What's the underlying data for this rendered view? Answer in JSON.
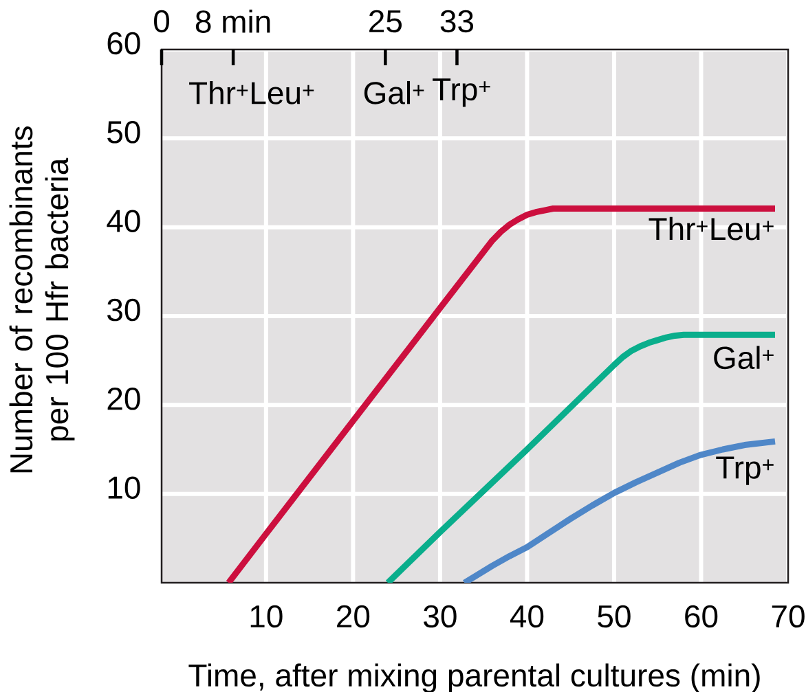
{
  "chart_data": {
    "type": "line",
    "xlabel": "Time, after mixing parental cultures (min)",
    "ylabel": "Number of recombinants per 100 Hfr bacteria",
    "xlim": [
      -2,
      70
    ],
    "xticks": [
      10,
      20,
      30,
      40,
      50,
      60,
      70
    ],
    "ylim": [
      0,
      60
    ],
    "yticks": [
      10,
      20,
      30,
      40,
      50,
      60
    ],
    "x2lim": [
      0,
      70
    ],
    "x2ticks": [
      0,
      {
        "value": 8,
        "label": "8 min"
      },
      25,
      33
    ],
    "grid": true,
    "series": [
      {
        "name": "Thr$^{+}$Leu$^{+}$",
        "color": "#cc0f3e",
        "x": [
          5.7,
          10,
          20,
          30,
          36,
          37,
          38,
          39,
          40,
          41,
          42,
          43,
          68.5
        ],
        "values": [
          0,
          5.5,
          18.2,
          30.9,
          38.5,
          39.5,
          40.3,
          40.9,
          41.4,
          41.7,
          41.9,
          42.1,
          42.1
        ]
      },
      {
        "name": "Gal$^{+}$",
        "color": "#0aae8c",
        "x": [
          24,
          30,
          40,
          50,
          51,
          52,
          53,
          54,
          55,
          56,
          57,
          58,
          68.5
        ],
        "values": [
          0,
          5.7,
          15.0,
          24.5,
          25.4,
          26.1,
          26.6,
          27.0,
          27.3,
          27.6,
          27.8,
          27.9,
          27.9
        ]
      },
      {
        "name": "Trp$^{+}$",
        "color": "#4f87c8",
        "x": [
          32.8,
          34,
          36,
          38,
          40,
          42.5,
          45,
          47.5,
          50,
          52.5,
          55,
          57.5,
          60,
          62.5,
          65,
          68.5
        ],
        "values": [
          0,
          0.7,
          1.9,
          3.0,
          4.0,
          5.6,
          7.2,
          8.7,
          10.1,
          11.3,
          12.4,
          13.5,
          14.4,
          15.0,
          15.5,
          15.9
        ]
      }
    ],
    "annotations": [
      "Thr$^{+}$Leu$^{+}$",
      "Gal$^{+}$",
      "Trp$^{+}$"
    ]
  }
}
